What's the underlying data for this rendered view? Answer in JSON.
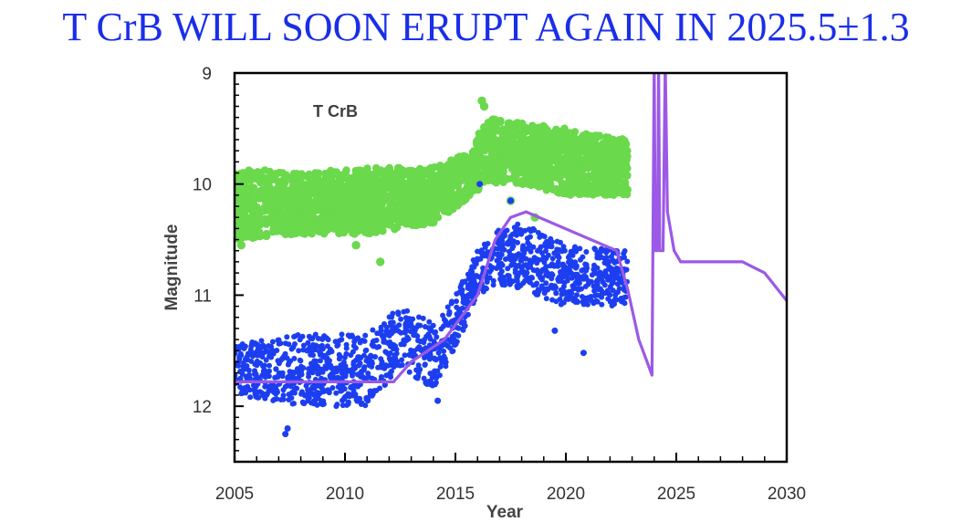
{
  "title": "T CrB WILL SOON ERUPT AGAIN IN 2025.5±1.3",
  "colors": {
    "title": "#1a2ee8",
    "green_series": "#6ad94c",
    "blue_series": "#1c3ef0",
    "model_line": "#9b59e6",
    "axis": "#000000"
  },
  "chart_data": {
    "type": "scatter",
    "title": "",
    "annotation": "T CrB",
    "xlabel": "Year",
    "ylabel": "Magnitude",
    "xlim": [
      2005,
      2030
    ],
    "ylim": [
      12.5,
      9
    ],
    "y_inverted": true,
    "grid": false,
    "xticks": [
      2005,
      2010,
      2015,
      2020,
      2025,
      2030
    ],
    "yticks": [
      9,
      10,
      11,
      12
    ],
    "series": [
      {
        "kind": "scatter-band",
        "color": "#6ad94c",
        "x_range": [
          2005,
          2022.8
        ],
        "band": [
          {
            "x": 2005,
            "lo": 9.85,
            "hi": 10.5
          },
          {
            "x": 2008,
            "lo": 9.9,
            "hi": 10.45
          },
          {
            "x": 2011,
            "lo": 9.85,
            "hi": 10.45
          },
          {
            "x": 2014,
            "lo": 9.85,
            "hi": 10.35
          },
          {
            "x": 2015.8,
            "lo": 9.7,
            "hi": 10.1
          },
          {
            "x": 2016.3,
            "lo": 9.4,
            "hi": 10.0
          },
          {
            "x": 2018,
            "lo": 9.45,
            "hi": 10.0
          },
          {
            "x": 2020,
            "lo": 9.5,
            "hi": 10.1
          },
          {
            "x": 2022.8,
            "lo": 9.6,
            "hi": 10.1
          }
        ],
        "outliers": [
          {
            "x": 2011.6,
            "y": 10.7
          },
          {
            "x": 2016.2,
            "y": 9.25
          },
          {
            "x": 2016.3,
            "y": 9.3
          },
          {
            "x": 2017.5,
            "y": 10.15
          },
          {
            "x": 2018.6,
            "y": 10.3
          },
          {
            "x": 2010.5,
            "y": 10.55
          },
          {
            "x": 2005.3,
            "y": 10.55
          }
        ]
      },
      {
        "kind": "scatter-band",
        "color": "#1c3ef0",
        "x_range": [
          2005,
          2022.8
        ],
        "band": [
          {
            "x": 2005,
            "lo": 11.45,
            "hi": 11.9
          },
          {
            "x": 2008,
            "lo": 11.35,
            "hi": 12.0
          },
          {
            "x": 2011,
            "lo": 11.35,
            "hi": 12.0
          },
          {
            "x": 2012.5,
            "lo": 11.1,
            "hi": 11.65
          },
          {
            "x": 2014,
            "lo": 11.25,
            "hi": 11.85
          },
          {
            "x": 2015,
            "lo": 11.0,
            "hi": 11.5
          },
          {
            "x": 2016,
            "lo": 10.6,
            "hi": 11.0
          },
          {
            "x": 2017,
            "lo": 10.4,
            "hi": 10.9
          },
          {
            "x": 2018,
            "lo": 10.35,
            "hi": 10.95
          },
          {
            "x": 2020,
            "lo": 10.55,
            "hi": 11.1
          },
          {
            "x": 2022.8,
            "lo": 10.6,
            "hi": 11.1
          }
        ],
        "outliers": [
          {
            "x": 2007.3,
            "y": 12.25
          },
          {
            "x": 2007.4,
            "y": 12.2
          },
          {
            "x": 2016.1,
            "y": 10.0
          },
          {
            "x": 2017.5,
            "y": 10.15
          },
          {
            "x": 2020.8,
            "y": 11.52
          },
          {
            "x": 2019.5,
            "y": 11.32
          },
          {
            "x": 2014.2,
            "y": 11.95
          }
        ]
      },
      {
        "kind": "line",
        "color": "#9b59e6",
        "x": [
          2005,
          2012.2,
          2013,
          2014.5,
          2016,
          2016.8,
          2017.5,
          2018.2,
          2022.3,
          2022.8,
          2023.3,
          2023.9,
          2024.0,
          2024.05,
          2024.15,
          2024.2,
          2024.25,
          2024.4,
          2024.5,
          2024.6,
          2024.9,
          2025.2,
          2028,
          2029,
          2030
        ],
        "y": [
          11.78,
          11.78,
          11.6,
          11.4,
          11.0,
          10.5,
          10.3,
          10.25,
          10.6,
          10.95,
          11.4,
          11.72,
          8.9,
          10.6,
          10.6,
          8.9,
          10.6,
          10.6,
          8.9,
          10.25,
          10.6,
          10.7,
          10.7,
          10.8,
          11.05
        ]
      }
    ]
  }
}
